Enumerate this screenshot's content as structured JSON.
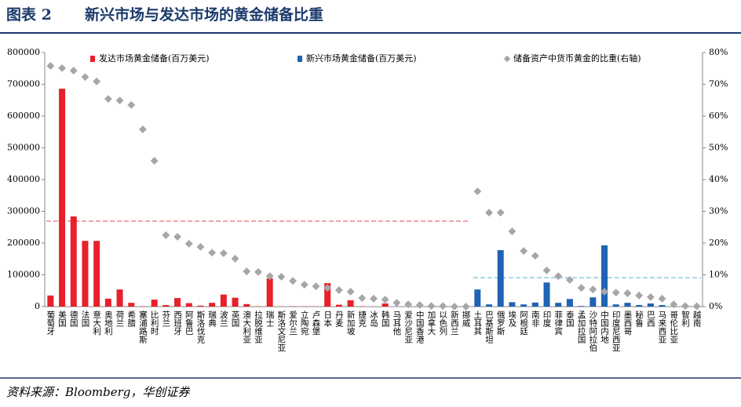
{
  "figure_label": "图表 2",
  "title": "新兴市场与发达市场的黄金储备比重",
  "source": "资料来源：Bloomberg，华创证券",
  "chart_data": {
    "type": "bar",
    "categories": [
      "葡萄牙",
      "美国",
      "德国",
      "法国",
      "意大利",
      "奥地利",
      "荷兰",
      "希腊",
      "塞浦路斯",
      "比利时",
      "芬兰",
      "西班牙",
      "阿鲁巴",
      "斯洛伐克",
      "瑞典",
      "波兰",
      "英国",
      "澳大利亚",
      "拉脱维亚",
      "瑞士",
      "斯洛文尼亚",
      "爱尔兰",
      "立陶宛",
      "卢森堡",
      "日本",
      "丹麦",
      "新加坡",
      "捷克",
      "冰岛",
      "韩国",
      "马耳他",
      "爱沙尼亚",
      "中国香港",
      "加拿大",
      "以色列",
      "新西兰",
      "挪威",
      "土耳其",
      "巴基斯坦",
      "俄罗斯",
      "埃及",
      "阿根廷",
      "南非",
      "印度",
      "菲律宾",
      "泰国",
      "孟加拉国",
      "沙特阿拉伯",
      "中国内地",
      "印度尼西亚",
      "墨西哥",
      "秘鲁",
      "巴西",
      "马来西亚",
      "哥伦比亚",
      "智利",
      "越南"
    ],
    "series": [
      {
        "name": "发达市场黄金储备(百万美元)",
        "color": "#e8202a",
        "values": [
          35000,
          686000,
          284000,
          207000,
          207000,
          25000,
          54000,
          12000,
          1000,
          22000,
          5000,
          27000,
          11000,
          3000,
          12000,
          38000,
          28000,
          8000,
          1000,
          89000,
          500,
          1000,
          1000,
          500,
          74000,
          6000,
          20000,
          1000,
          200,
          10000,
          0,
          0,
          0,
          0,
          0,
          0,
          0,
          null,
          null,
          null,
          null,
          null,
          null,
          null,
          null,
          null,
          null,
          null,
          null,
          null,
          null,
          null,
          null,
          null,
          null,
          null,
          null
        ],
        "average_line": {
          "value": 26.9,
          "axis": "y2",
          "color": "#f2a3a6"
        }
      },
      {
        "name": "新兴市场黄金储备(百万美元)",
        "color": "#1f63b4",
        "values": [
          null,
          null,
          null,
          null,
          null,
          null,
          null,
          null,
          null,
          null,
          null,
          null,
          null,
          null,
          null,
          null,
          null,
          null,
          null,
          null,
          null,
          null,
          null,
          null,
          null,
          null,
          null,
          null,
          null,
          null,
          null,
          null,
          null,
          null,
          null,
          null,
          null,
          54000,
          7000,
          178000,
          14000,
          7000,
          13000,
          76000,
          12000,
          24000,
          2000,
          29000,
          193000,
          7000,
          12000,
          5000,
          10000,
          5000,
          100,
          0,
          0
        ],
        "average_line": {
          "value": 9.1,
          "axis": "y2",
          "color": "#a9d6ec"
        }
      },
      {
        "name": "储备资产中货币黄金的比重(右轴)",
        "color": "#a6a6a6",
        "axis": "y2",
        "type": "scatter",
        "values": [
          75.8,
          75.1,
          74.3,
          72.3,
          70.9,
          65.4,
          64.9,
          63.5,
          55.8,
          45.9,
          22.5,
          22.0,
          19.8,
          18.8,
          17.0,
          16.8,
          15.1,
          11.1,
          10.9,
          9.6,
          9.4,
          8.1,
          6.9,
          6.4,
          5.9,
          5.2,
          4.7,
          2.7,
          2.5,
          2.2,
          1.2,
          0.7,
          0.5,
          0.2,
          0.2,
          0,
          0,
          36.3,
          29.6,
          29.6,
          23.7,
          17.5,
          16.0,
          11.4,
          9.6,
          8.4,
          5.9,
          5.4,
          4.7,
          4.4,
          4.2,
          3.5,
          3.0,
          2.5,
          0.7,
          0.2,
          0.1
        ]
      }
    ],
    "ylim": [
      0,
      800000
    ],
    "yticks": [
      0,
      100000,
      200000,
      300000,
      400000,
      500000,
      600000,
      700000,
      800000
    ],
    "y2lim": [
      0,
      80
    ],
    "y2ticks": [
      {
        "value": 0,
        "label": "0%"
      },
      {
        "value": 10,
        "label": "10%"
      },
      {
        "value": 20,
        "label": "20%"
      },
      {
        "value": 30,
        "label": "30%"
      },
      {
        "value": 40,
        "label": "40%"
      },
      {
        "value": 50,
        "label": "50%"
      },
      {
        "value": 60,
        "label": "60%"
      },
      {
        "value": 70,
        "label": "70%"
      },
      {
        "value": 80,
        "label": "80%"
      }
    ]
  }
}
